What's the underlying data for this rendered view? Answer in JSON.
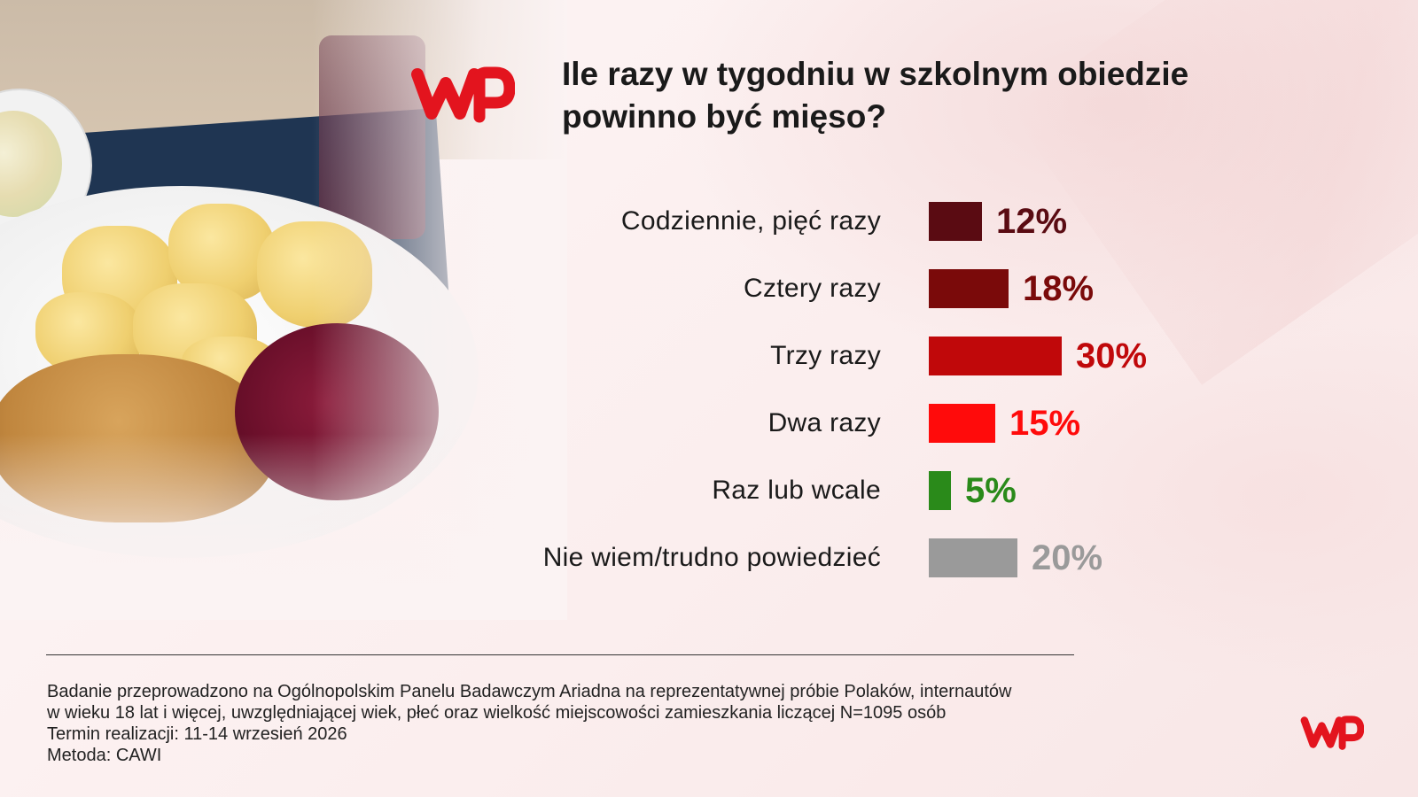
{
  "title": {
    "line1": "Ile razy w tygodniu w szkolnym obiedzie",
    "line2": "powinno być mięso?"
  },
  "colors": {
    "background": "#fbf3f3",
    "brand": "#e3141e"
  },
  "icons": {
    "logo_top": "wp-logo",
    "logo_bottom": "wp-logo"
  },
  "chart_data": {
    "type": "bar",
    "orientation": "horizontal",
    "categories": [
      "Codziennie, pięć razy",
      "Cztery razy",
      "Trzy razy",
      "Dwa razy",
      "Raz lub wcale",
      "Nie wiem/trudno powiedzieć"
    ],
    "values": [
      12,
      18,
      30,
      15,
      5,
      20
    ],
    "value_labels": [
      "12%",
      "18%",
      "30%",
      "15%",
      "5%",
      "20%"
    ],
    "colors": [
      "#5a0b12",
      "#7a0a0a",
      "#c0080a",
      "#ff0b0b",
      "#2a8a1a",
      "#9a9a9a"
    ],
    "unit": "%",
    "grid": false,
    "legend": "none"
  },
  "footnote": {
    "line1": "Badanie przeprowadzono na Ogólnopolskim Panelu Badawczym Ariadna na reprezentatywnej próbie Polaków, internautów",
    "line2": "w wieku 18 lat i więcej, uwzględniającej wiek, płeć oraz wielkość miejscowości zamieszkania liczącej N=1095 osób",
    "line3": "Termin realizacji: 11-14 wrzesień 2026",
    "line4": "Metoda: CAWI"
  }
}
